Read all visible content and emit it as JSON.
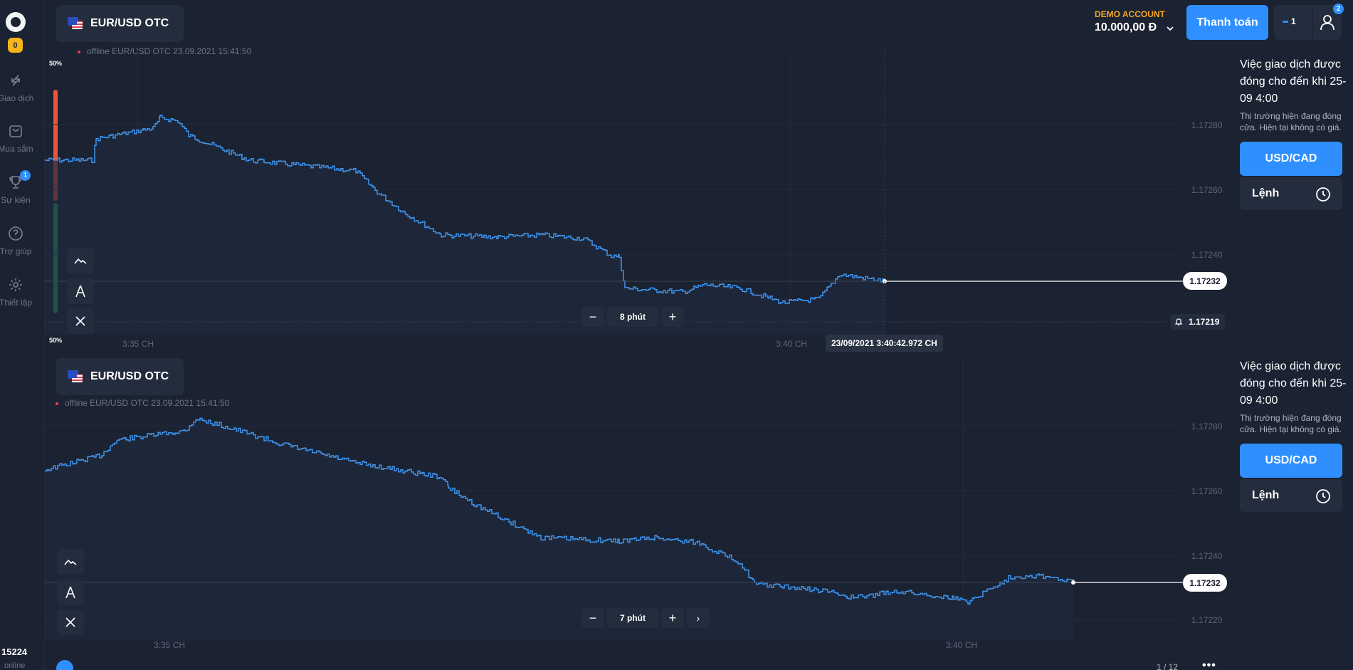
{
  "sidebar": {
    "coin_count": "0",
    "items": [
      {
        "label": "Giao dịch",
        "icon": "trade-icon"
      },
      {
        "label": "Mua sắm",
        "icon": "shopping-bag-icon"
      },
      {
        "label": "Sự kiện",
        "icon": "trophy-icon",
        "badge": "1"
      },
      {
        "label": "Trợ giúp",
        "icon": "help-icon"
      },
      {
        "label": "Thiết lập",
        "icon": "gear-icon"
      }
    ],
    "online_count": "15224",
    "online_label": "online"
  },
  "header": {
    "demo_label": "DEMO ACCOUNT",
    "balance": "10.000,00 Đ",
    "pay_button": "Thanh toán",
    "trades_count": "1",
    "notifications_badge": "2"
  },
  "charts": [
    {
      "pair": "EUR/USD OTC",
      "offline_text": "offline EUR/USD OTC  23.09.2021 15:41:50",
      "top_pct": "50%",
      "bottom_pct": "50%",
      "current_price": "1.17232",
      "alert_price": "1.17219",
      "timeframe": "8 phút",
      "crosshair_timestamp": "23/09/2021 3:40:42.972 CH",
      "y_ticks": [
        "1.17280",
        "1.17260",
        "1.17240"
      ],
      "x_ticks": [
        "3:35 CH",
        "3:40 CH"
      ]
    },
    {
      "pair": "EUR/USD OTC",
      "offline_text": "offline EUR/USD OTC  23.09.2021 15:41:50",
      "current_price": "1.17232",
      "timeframe": "7 phút",
      "y_ticks": [
        "1.17280",
        "1.17260",
        "1.17240",
        "1.17220"
      ],
      "x_ticks": [
        "3:35 CH",
        "3:40 CH"
      ]
    }
  ],
  "right_panel": {
    "closed_title": "Việc giao dịch được đóng cho đến khi 25-09 4:00",
    "closed_sub": "Thị trường hiện đang đóng cửa. Hiện tại không có giá.",
    "asset_button": "USD/CAD",
    "orders_button": "Lệnh"
  },
  "footer": {
    "pager": "1 / 12"
  },
  "colors": {
    "background": "#1b2231",
    "panel": "#242d3e",
    "accent": "#2f8fff",
    "line": "#3d95f0",
    "demo": "#f5a623",
    "sell": "#e8553c",
    "buy": "#16b36a"
  }
}
